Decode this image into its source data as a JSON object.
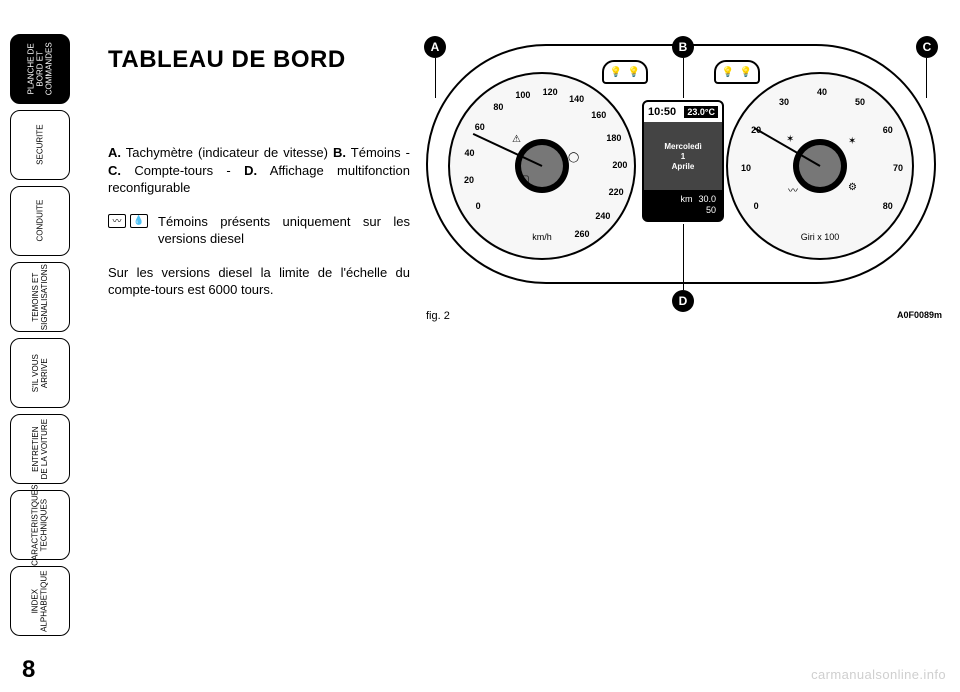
{
  "page_number": "8",
  "sidebar_tabs": [
    {
      "label": "PLANCHE DE\nBORD ET\nCOMMANDES",
      "active": true
    },
    {
      "label": "SECURITE",
      "active": false
    },
    {
      "label": "CONDUITE",
      "active": false
    },
    {
      "label": "TEMOINS ET\nSIGNALISATIONS",
      "active": false
    },
    {
      "label": "S'IL VOUS\nARRIVE",
      "active": false
    },
    {
      "label": "ENTRETIEN\nDE LA VOITURE",
      "active": false
    },
    {
      "label": "CARACTERISTIQUES\nTECHNIQUES",
      "active": false
    },
    {
      "label": "INDEX\nALPHABETIQUE",
      "active": false
    }
  ],
  "title": "TABLEAU DE BORD",
  "para1_parts": {
    "a": "A.",
    "a_text": " Tachymètre (indicateur de vitesse) ",
    "b": "B.",
    "b_text": " Témoins - ",
    "c": "C.",
    "c_text": " Compte-tours - ",
    "d": "D.",
    "d_text": " Affichage multifonction reconfigurable"
  },
  "legend_text": "Témoins présents uniquement sur les versions diesel",
  "para2": "Sur les versions diesel la limite de l'échelle du compte-tours est 6000 tours.",
  "figure": {
    "caption": "fig. 2",
    "code": "A0F0089m",
    "callouts": {
      "A": "A",
      "B": "B",
      "C": "C",
      "D": "D"
    },
    "speedo": {
      "unit": "km/h",
      "ticks": [
        "0",
        "20",
        "40",
        "60",
        "80",
        "100",
        "120",
        "140",
        "160",
        "180",
        "200",
        "220",
        "240",
        "260"
      ],
      "tick_start_deg": 210,
      "tick_end_deg": -60
    },
    "tacho": {
      "unit": "Giri x 100",
      "ticks": [
        "0",
        "10",
        "20",
        "30",
        "40",
        "50",
        "60",
        "70",
        "80"
      ],
      "tick_start_deg": 210,
      "tick_end_deg": -30
    },
    "mfd": {
      "time": "10:50",
      "temp": "23.0",
      "temp_unit": "°C",
      "day": "Mercoledì",
      "date_num": "1",
      "month": "Aprile",
      "km_label": "km",
      "km_value": "30.0",
      "km_total": "50"
    }
  },
  "watermark": "carmanualsonline.info",
  "colors": {
    "black": "#000000",
    "white": "#ffffff",
    "gauge_face": "#f7f7f7",
    "mfd_mid": "#444444",
    "hub_inner": "#777777",
    "watermark": "#cfcfcf"
  }
}
